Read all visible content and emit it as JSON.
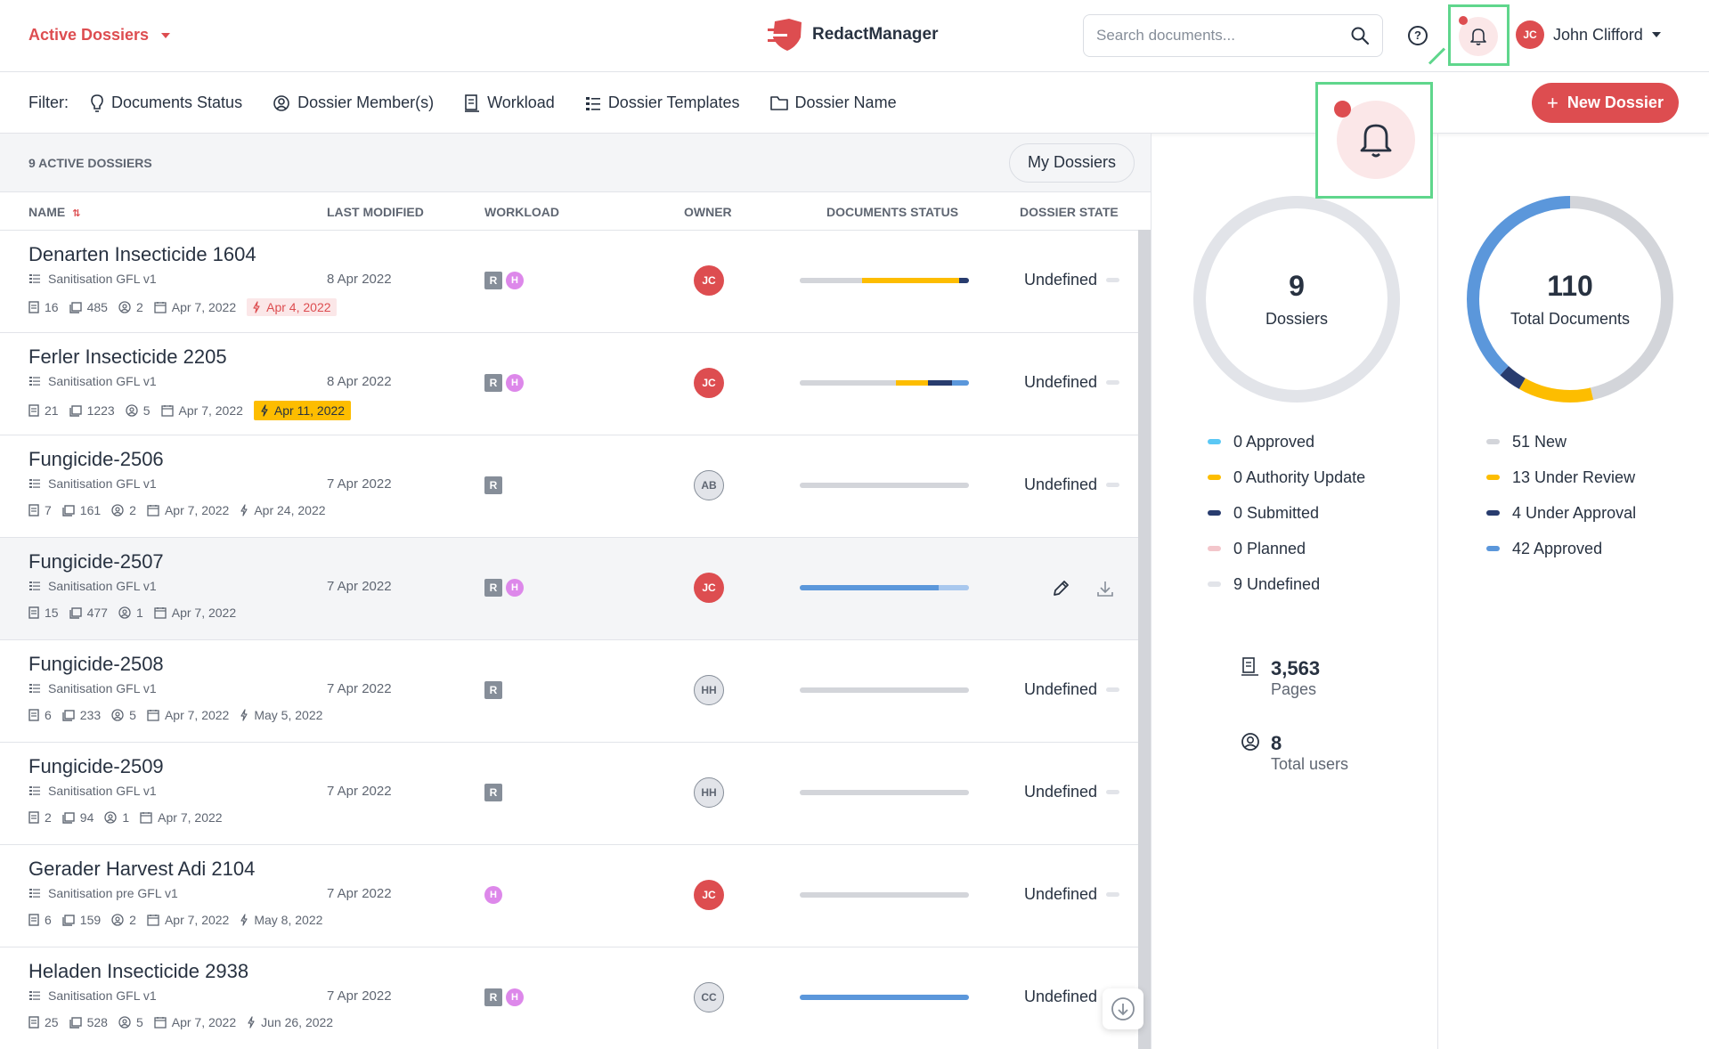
{
  "header": {
    "section_title": "Active Dossiers",
    "app_name": "RedactManager",
    "search_placeholder": "Search documents...",
    "help_label": "?",
    "user_initials": "JC",
    "user_name": "John Clifford"
  },
  "filters": {
    "label": "Filter:",
    "items": [
      {
        "label": "Documents Status",
        "icon": "lightbulb-icon"
      },
      {
        "label": "Dossier Member(s)",
        "icon": "user-circle-icon"
      },
      {
        "label": "Workload",
        "icon": "workload-icon"
      },
      {
        "label": "Dossier Templates",
        "icon": "list-icon"
      },
      {
        "label": "Dossier Name",
        "icon": "folder-icon"
      }
    ],
    "new_button": "New Dossier"
  },
  "list": {
    "count_label": "9 ACTIVE DOSSIERS",
    "my_dossiers_label": "My Dossiers",
    "columns": {
      "name": "NAME",
      "last_modified": "LAST MODIFIED",
      "workload": "WORKLOAD",
      "owner": "OWNER",
      "documents_status": "DOCUMENTS STATUS",
      "dossier_state": "DOSSIER STATE"
    },
    "rows": [
      {
        "name": "Denarten Insecticide 1604",
        "template": "Sanitisation GFL v1",
        "docs": "16",
        "pages": "485",
        "members": "2",
        "created": "Apr 7, 2022",
        "due": "Apr 4, 2022",
        "due_style": "red",
        "modified": "8 Apr 2022",
        "r": true,
        "h": true,
        "owner": "JC",
        "owner_style": "red",
        "state": "Undefined",
        "status": [
          {
            "c": "#d3d5da",
            "v": 0.37
          },
          {
            "c": "#fdbd00",
            "v": 0.57
          },
          {
            "c": "#283c6e",
            "v": 0.06
          }
        ]
      },
      {
        "name": "Ferler Insecticide 2205",
        "template": "Sanitisation GFL v1",
        "docs": "21",
        "pages": "1223",
        "members": "5",
        "created": "Apr 7, 2022",
        "due": "Apr 11, 2022",
        "due_style": "yellow",
        "modified": "8 Apr 2022",
        "r": true,
        "h": true,
        "owner": "JC",
        "owner_style": "red",
        "state": "Undefined",
        "status": [
          {
            "c": "#d3d5da",
            "v": 0.57
          },
          {
            "c": "#fdbd00",
            "v": 0.19
          },
          {
            "c": "#283c6e",
            "v": 0.14
          },
          {
            "c": "#5b97db",
            "v": 0.1
          }
        ]
      },
      {
        "name": "Fungicide-2506",
        "template": "Sanitisation GFL v1",
        "docs": "7",
        "pages": "161",
        "members": "2",
        "created": "Apr 7, 2022",
        "due": "Apr 24, 2022",
        "due_style": "plain",
        "modified": "7 Apr 2022",
        "r": true,
        "h": false,
        "owner": "AB",
        "owner_style": "grey",
        "state": "Undefined",
        "status": [
          {
            "c": "#d3d5da",
            "v": 1
          }
        ]
      },
      {
        "name": "Fungicide-2507",
        "template": "Sanitisation GFL v1",
        "docs": "15",
        "pages": "477",
        "members": "1",
        "created": "Apr 7, 2022",
        "due": "",
        "due_style": "none",
        "modified": "7 Apr 2022",
        "r": true,
        "h": true,
        "owner": "JC",
        "owner_style": "red",
        "state": "",
        "status": [
          {
            "c": "#5b97db",
            "v": 0.82
          },
          {
            "c": "#a9c8ee",
            "v": 0.18
          }
        ]
      },
      {
        "name": "Fungicide-2508",
        "template": "Sanitisation GFL v1",
        "docs": "6",
        "pages": "233",
        "members": "5",
        "created": "Apr 7, 2022",
        "due": "May 5, 2022",
        "due_style": "plain",
        "modified": "7 Apr 2022",
        "r": true,
        "h": false,
        "owner": "HH",
        "owner_style": "grey",
        "state": "Undefined",
        "status": [
          {
            "c": "#d3d5da",
            "v": 1
          }
        ]
      },
      {
        "name": "Fungicide-2509",
        "template": "Sanitisation GFL v1",
        "docs": "2",
        "pages": "94",
        "members": "1",
        "created": "Apr 7, 2022",
        "due": "",
        "due_style": "none",
        "modified": "7 Apr 2022",
        "r": true,
        "h": false,
        "owner": "HH",
        "owner_style": "grey",
        "state": "Undefined",
        "status": [
          {
            "c": "#d3d5da",
            "v": 1
          }
        ]
      },
      {
        "name": "Gerader Harvest Adi 2104",
        "template": "Sanitisation pre GFL v1",
        "docs": "6",
        "pages": "159",
        "members": "2",
        "created": "Apr 7, 2022",
        "due": "May 8, 2022",
        "due_style": "plain",
        "modified": "7 Apr 2022",
        "r": false,
        "h": true,
        "owner": "JC",
        "owner_style": "red",
        "state": "Undefined",
        "status": [
          {
            "c": "#d3d5da",
            "v": 1
          }
        ]
      },
      {
        "name": "Heladen Insecticide 2938",
        "template": "Sanitisation GFL v1",
        "docs": "25",
        "pages": "528",
        "members": "5",
        "created": "Apr 7, 2022",
        "due": "Jun 26, 2022",
        "due_style": "plain",
        "modified": "7 Apr 2022",
        "r": true,
        "h": true,
        "owner": "CC",
        "owner_style": "grey",
        "state": "Undefined",
        "status": [
          {
            "c": "#5b97db",
            "v": 1
          }
        ]
      }
    ]
  },
  "stats": {
    "dossiers": {
      "count": "9",
      "label": "Dossiers",
      "legend": [
        {
          "label": "0 Approved",
          "color": "#5bc8f5"
        },
        {
          "label": "0 Authority Update",
          "color": "#fdbd00"
        },
        {
          "label": "0 Submitted",
          "color": "#283c6e"
        },
        {
          "label": "0 Planned",
          "color": "#f3c6cb"
        },
        {
          "label": "9 Undefined",
          "color": "#e2e4e9"
        }
      ]
    },
    "documents": {
      "count": "110",
      "label": "Total Documents",
      "legend": [
        {
          "label": "51 New",
          "color": "#d3d5da",
          "value": 51
        },
        {
          "label": "13 Under Review",
          "color": "#fdbd00",
          "value": 13
        },
        {
          "label": "4 Under Approval",
          "color": "#283c6e",
          "value": 4
        },
        {
          "label": "42 Approved",
          "color": "#5b97db",
          "value": 42
        }
      ]
    },
    "pages_count": "3,563",
    "pages_label": "Pages",
    "users_count": "8",
    "users_label": "Total users"
  }
}
